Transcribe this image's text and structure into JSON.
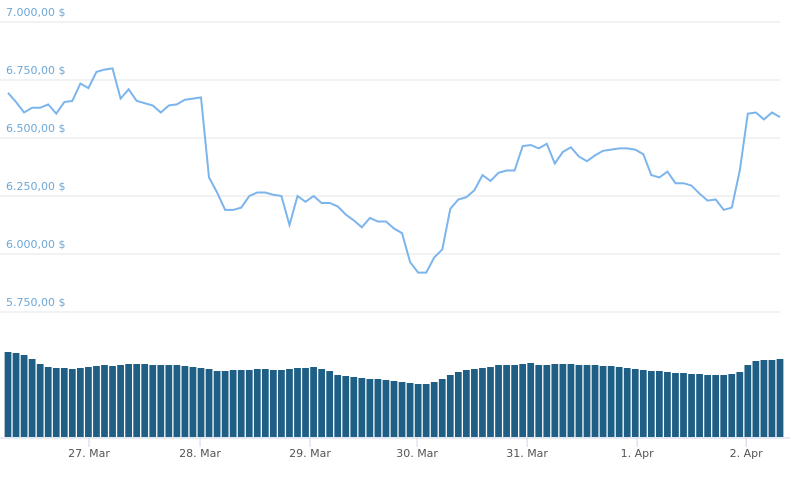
{
  "chart_data": [
    {
      "type": "line",
      "color": "#7cb5ec",
      "values": [
        6695,
        6655,
        6610,
        6630,
        6630,
        6645,
        6605,
        6655,
        6660,
        6735,
        6715,
        6785,
        6795,
        6800,
        6670,
        6710,
        6660,
        6650,
        6640,
        6610,
        6640,
        6645,
        6665,
        6670,
        6675,
        6330,
        6265,
        6190,
        6190,
        6200,
        6250,
        6265,
        6265,
        6255,
        6250,
        6125,
        6250,
        6225,
        6250,
        6220,
        6220,
        6205,
        6170,
        6145,
        6115,
        6155,
        6140,
        6140,
        6110,
        6090,
        5965,
        5920,
        5920,
        5985,
        6020,
        6195,
        6235,
        6245,
        6275,
        6340,
        6315,
        6350,
        6360,
        6360,
        6465,
        6470,
        6455,
        6475,
        6390,
        6440,
        6460,
        6420,
        6400,
        6425,
        6445,
        6450,
        6455,
        6455,
        6450,
        6430,
        6340,
        6330,
        6355,
        6305,
        6305,
        6295,
        6260,
        6230,
        6235,
        6190,
        6200,
        6360,
        6605,
        6610,
        6580,
        6610,
        6590
      ],
      "xlim": [
        0,
        96
      ],
      "xticks": [
        {
          "value": 10.07,
          "label": "27. Mar"
        },
        {
          "value": 23.88,
          "label": "28. Mar"
        },
        {
          "value": 37.56,
          "label": "29. Mar"
        },
        {
          "value": 50.87,
          "label": "30. Mar"
        },
        {
          "value": 64.55,
          "label": "31. Mar"
        },
        {
          "value": 78.23,
          "label": "1. Apr"
        },
        {
          "value": 91.79,
          "label": "2. Apr"
        }
      ],
      "ylim": [
        5750,
        7000
      ],
      "yticks": [
        {
          "value": 5750,
          "label": "5.750,00 $"
        },
        {
          "value": 6000,
          "label": "6.000,00 $"
        },
        {
          "value": 6250,
          "label": "6.250,00 $"
        },
        {
          "value": 6500,
          "label": "6.500,00 $"
        },
        {
          "value": 6750,
          "label": "6.750,00 $"
        },
        {
          "value": 7000,
          "label": "7.000,00 $"
        }
      ],
      "grid": true
    },
    {
      "type": "bar",
      "color": "#1f5f85",
      "values": [
        85,
        84,
        82,
        78,
        73,
        70,
        69,
        69,
        68,
        69,
        70,
        71,
        72,
        71,
        72,
        73,
        73,
        73,
        72,
        72,
        72,
        72,
        71,
        70,
        69,
        68,
        66,
        66,
        67,
        67,
        67,
        68,
        68,
        67,
        67,
        68,
        69,
        69,
        70,
        68,
        66,
        62,
        61,
        60,
        59,
        58,
        58,
        57,
        56,
        55,
        54,
        53,
        53,
        55,
        58,
        62,
        65,
        67,
        68,
        69,
        70,
        72,
        72,
        72,
        73,
        74,
        72,
        72,
        73,
        73,
        73,
        72,
        72,
        72,
        71,
        71,
        70,
        69,
        68,
        67,
        66,
        66,
        65,
        64,
        64,
        63,
        63,
        62,
        62,
        62,
        63,
        65,
        72,
        76,
        77,
        77,
        78
      ],
      "ylim": [
        0,
        100
      ]
    }
  ]
}
